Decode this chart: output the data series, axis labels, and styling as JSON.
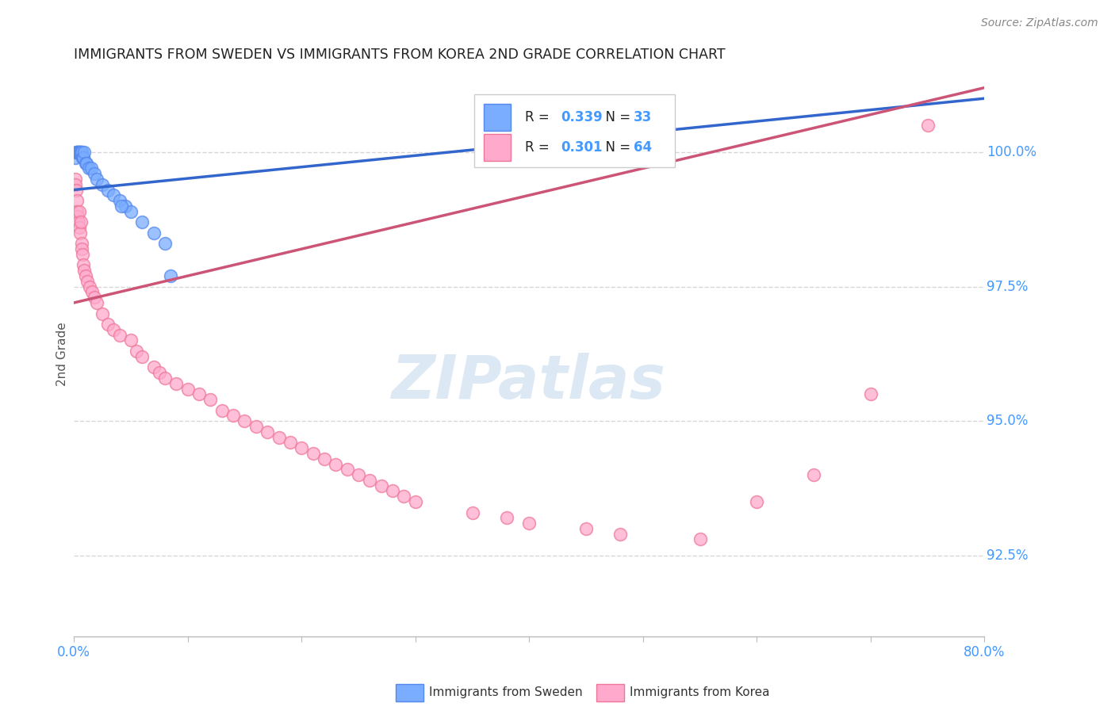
{
  "title": "IMMIGRANTS FROM SWEDEN VS IMMIGRANTS FROM KOREA 2ND GRADE CORRELATION CHART",
  "source": "Source: ZipAtlas.com",
  "ylabel": "2nd Grade",
  "xlim": [
    0.0,
    80.0
  ],
  "ylim": [
    91.0,
    101.5
  ],
  "ytick_vals": [
    100.0,
    97.5,
    95.0,
    92.5
  ],
  "ytick_labels": [
    "100.0%",
    "97.5%",
    "95.0%",
    "92.5%"
  ],
  "xtick_vals": [
    0.0,
    10.0,
    20.0,
    30.0,
    40.0,
    50.0,
    60.0,
    70.0,
    80.0
  ],
  "xtick_labels": [
    "0.0%",
    "",
    "",
    "",
    "",
    "",
    "",
    "",
    "80.0%"
  ],
  "sweden_color": "#7aadff",
  "sweden_edge": "#5588ee",
  "sweden_line_color": "#3366cc",
  "korea_color": "#ffaacc",
  "korea_edge": "#ee7799",
  "korea_line_color": "#cc5577",
  "sweden_R": 0.339,
  "sweden_N": 33,
  "korea_R": 0.301,
  "korea_N": 64,
  "legend_label_sweden": "Immigrants from Sweden",
  "legend_label_korea": "Immigrants from Korea",
  "watermark": "ZIPatlas",
  "background_color": "#ffffff",
  "grid_color": "#cccccc",
  "axis_color": "#4499ff",
  "title_color": "#222222",
  "sweden_x": [
    0.15,
    0.2,
    0.25,
    0.3,
    0.35,
    0.4,
    0.45,
    0.5,
    0.55,
    0.6,
    0.65,
    0.7,
    0.75,
    0.8,
    0.85,
    0.9,
    1.0,
    1.1,
    1.3,
    1.5,
    1.8,
    2.0,
    2.5,
    3.0,
    3.5,
    4.0,
    4.5,
    5.0,
    6.0,
    7.0,
    8.0,
    8.5,
    4.2
  ],
  "sweden_y": [
    99.9,
    100.0,
    100.0,
    100.0,
    100.0,
    100.0,
    100.0,
    100.0,
    100.0,
    100.0,
    100.0,
    100.0,
    99.9,
    99.9,
    99.9,
    100.0,
    99.8,
    99.8,
    99.7,
    99.7,
    99.6,
    99.5,
    99.4,
    99.3,
    99.2,
    99.1,
    99.0,
    98.9,
    98.7,
    98.5,
    98.3,
    97.7,
    99.0
  ],
  "korea_x": [
    0.1,
    0.15,
    0.2,
    0.25,
    0.3,
    0.35,
    0.4,
    0.45,
    0.5,
    0.55,
    0.6,
    0.65,
    0.7,
    0.75,
    0.8,
    0.9,
    1.0,
    1.2,
    1.4,
    1.6,
    1.8,
    2.0,
    2.5,
    3.0,
    3.5,
    4.0,
    5.0,
    5.5,
    6.0,
    7.0,
    7.5,
    8.0,
    9.0,
    10.0,
    11.0,
    12.0,
    13.0,
    14.0,
    15.0,
    16.0,
    17.0,
    18.0,
    19.0,
    20.0,
    21.0,
    22.0,
    23.0,
    24.0,
    25.0,
    26.0,
    27.0,
    28.0,
    29.0,
    30.0,
    35.0,
    38.0,
    40.0,
    45.0,
    48.0,
    55.0,
    60.0,
    65.0,
    70.0,
    75.0
  ],
  "korea_y": [
    99.5,
    99.4,
    99.3,
    99.1,
    98.9,
    98.8,
    98.7,
    98.6,
    98.9,
    98.5,
    98.7,
    98.3,
    98.2,
    98.1,
    97.9,
    97.8,
    97.7,
    97.6,
    97.5,
    97.4,
    97.3,
    97.2,
    97.0,
    96.8,
    96.7,
    96.6,
    96.5,
    96.3,
    96.2,
    96.0,
    95.9,
    95.8,
    95.7,
    95.6,
    95.5,
    95.4,
    95.2,
    95.1,
    95.0,
    94.9,
    94.8,
    94.7,
    94.6,
    94.5,
    94.4,
    94.3,
    94.2,
    94.1,
    94.0,
    93.9,
    93.8,
    93.7,
    93.6,
    93.5,
    93.3,
    93.2,
    93.1,
    93.0,
    92.9,
    92.8,
    93.5,
    94.0,
    95.5,
    100.5
  ]
}
